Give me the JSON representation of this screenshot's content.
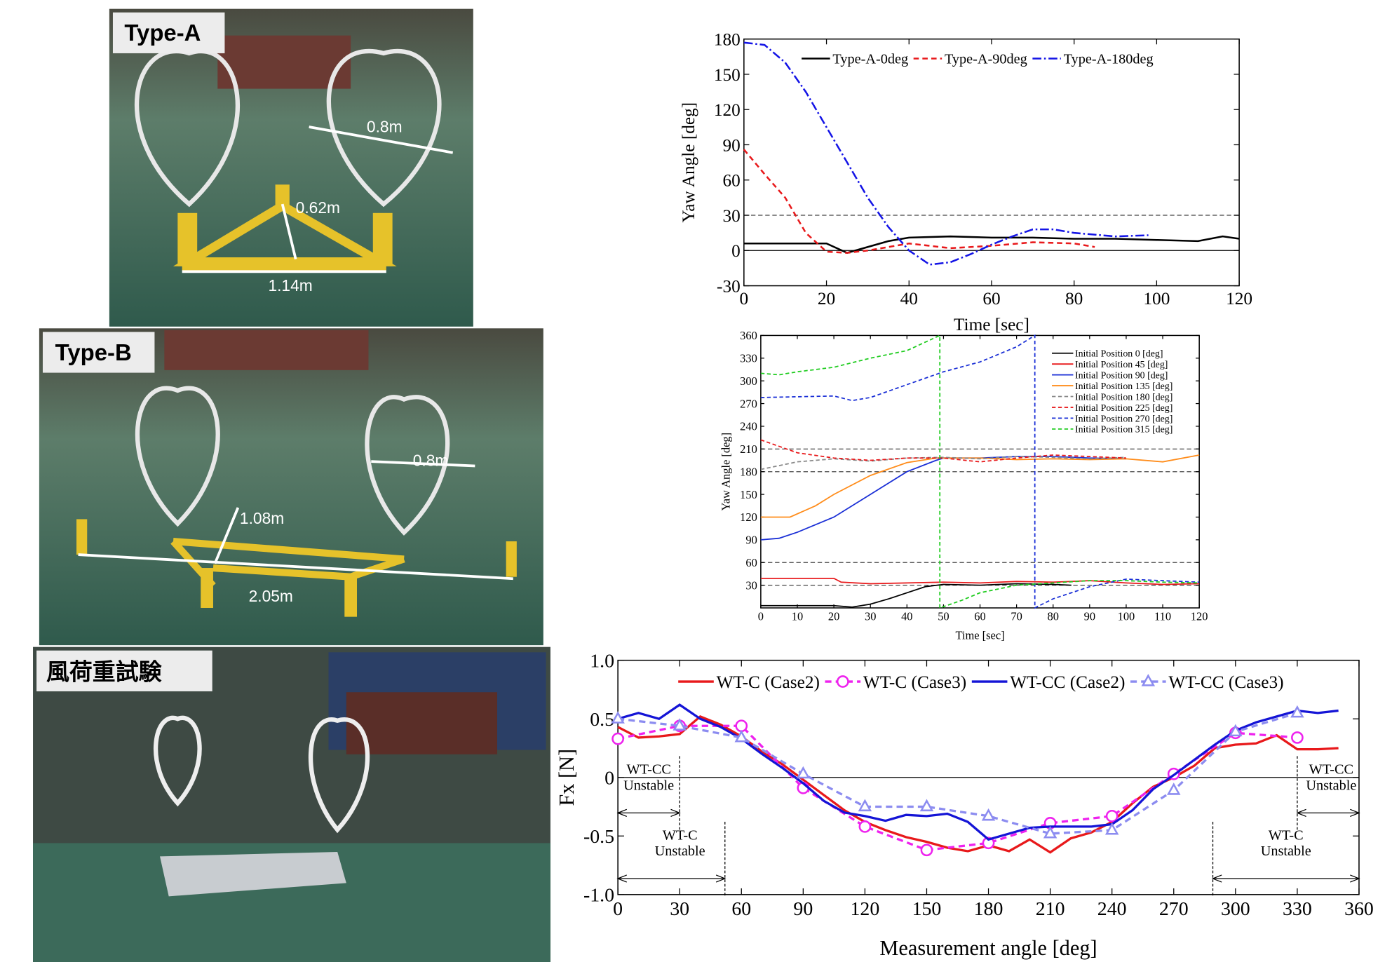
{
  "photos": [
    {
      "label": "Type-A",
      "annotations": [
        "0.8m",
        "0.62m",
        "1.14m"
      ]
    },
    {
      "label": "Type-B",
      "annotations": [
        "0.8m",
        "1.08m",
        "2.05m"
      ]
    },
    {
      "label": "風荷重試験",
      "annotations": []
    }
  ],
  "chart_data": [
    {
      "type": "line",
      "xlabel": "Time [sec]",
      "ylabel": "Yaw Angle [deg]",
      "xlim": [
        0,
        120
      ],
      "xticks": [
        0,
        20,
        40,
        60,
        80,
        100,
        120
      ],
      "ylim": [
        -30,
        180
      ],
      "yticks": [
        -30,
        0,
        30,
        60,
        90,
        120,
        150,
        180
      ],
      "hlines": [
        {
          "value": 30,
          "style": "dashed"
        },
        {
          "value": 0,
          "style": "solid"
        }
      ],
      "legend": "top",
      "series": [
        {
          "name": "Type-A-0deg",
          "color": "#000000",
          "style": "solid",
          "x": [
            0,
            10,
            20,
            25,
            30,
            35,
            40,
            50,
            60,
            70,
            80,
            90,
            100,
            110,
            116,
            120
          ],
          "values": [
            6,
            6,
            6,
            -2,
            3,
            8,
            11,
            12,
            11,
            11,
            10,
            10,
            9,
            8,
            12,
            10
          ]
        },
        {
          "name": "Type-A-90deg",
          "color": "#e8191b",
          "style": "dashed",
          "x": [
            0,
            5,
            10,
            15,
            20,
            25,
            30,
            40,
            50,
            60,
            70,
            80,
            85
          ],
          "values": [
            86,
            65,
            45,
            15,
            -1,
            -2,
            0,
            6,
            2,
            4,
            7,
            6,
            3
          ]
        },
        {
          "name": "Type-A-180deg",
          "color": "#1414e6",
          "style": "dashdot",
          "x": [
            0,
            5,
            10,
            15,
            20,
            25,
            30,
            35,
            40,
            45,
            50,
            55,
            60,
            65,
            70,
            75,
            80,
            90,
            98
          ],
          "values": [
            177,
            175,
            160,
            135,
            105,
            75,
            45,
            20,
            0,
            -12,
            -10,
            -3,
            5,
            12,
            18,
            18,
            15,
            12,
            13
          ]
        }
      ]
    },
    {
      "type": "line",
      "xlabel": "Time [sec]",
      "ylabel": "Yaw Angle [deg]",
      "xlim": [
        0,
        120
      ],
      "xticks": [
        0,
        10,
        20,
        30,
        40,
        50,
        60,
        70,
        80,
        90,
        100,
        110,
        120
      ],
      "ylim": [
        0,
        360
      ],
      "yticks": [
        30,
        60,
        90,
        120,
        150,
        180,
        210,
        240,
        270,
        300,
        330,
        360
      ],
      "hlines": [
        {
          "value": 30,
          "style": "dashed"
        },
        {
          "value": 60,
          "style": "dashed"
        },
        {
          "value": 180,
          "style": "dashed"
        },
        {
          "value": 210,
          "style": "dashed"
        }
      ],
      "legend": "top-right",
      "series": [
        {
          "name": "Initial Position 0 [deg]",
          "color": "#000000",
          "style": "solid",
          "x": [
            0,
            20,
            25,
            30,
            35,
            40,
            45,
            50,
            60,
            70,
            80,
            85
          ],
          "values": [
            3,
            3,
            1,
            5,
            12,
            20,
            28,
            31,
            30,
            32,
            31,
            30
          ]
        },
        {
          "name": "Initial Position 45 [deg]",
          "color": "#e8191b",
          "style": "solid",
          "x": [
            0,
            20,
            22,
            30,
            40,
            50,
            60,
            70,
            80,
            90,
            100,
            110,
            120
          ],
          "values": [
            39,
            39,
            34,
            32,
            33,
            34,
            33,
            35,
            34,
            36,
            33,
            31,
            32
          ]
        },
        {
          "name": "Initial Position 90 [deg]",
          "color": "#1a2fd6",
          "style": "solid",
          "x": [
            0,
            5,
            10,
            20,
            30,
            40,
            48,
            50,
            60,
            70,
            80,
            90,
            100
          ],
          "values": [
            90,
            92,
            100,
            120,
            150,
            180,
            195,
            198,
            198,
            200,
            200,
            198,
            197
          ]
        },
        {
          "name": "Initial Position 135 [deg]",
          "color": "#ff8c1a",
          "style": "solid",
          "x": [
            0,
            8,
            15,
            20,
            30,
            40,
            48,
            60,
            70,
            80,
            90,
            100,
            110,
            120
          ],
          "values": [
            120,
            120,
            135,
            150,
            175,
            192,
            198,
            198,
            196,
            197,
            196,
            197,
            193,
            202
          ]
        },
        {
          "name": "Initial Position 180 [deg]",
          "color": "#888888",
          "style": "dashed",
          "x": [
            0,
            10,
            20,
            30,
            40,
            50,
            60,
            70,
            80,
            90,
            100
          ],
          "values": [
            183,
            193,
            197,
            194,
            198,
            199,
            197,
            200,
            199,
            197,
            199
          ]
        },
        {
          "name": "Initial Position 225 [deg]",
          "color": "#e8191b",
          "style": "dashed",
          "x": [
            0,
            10,
            20,
            30,
            40,
            50,
            60,
            70,
            80,
            90,
            100
          ],
          "values": [
            222,
            205,
            198,
            195,
            198,
            198,
            193,
            198,
            202,
            200,
            198
          ]
        },
        {
          "name": "Initial Position 270 [deg]",
          "color": "#1a2fd6",
          "style": "dashed",
          "x": [
            0,
            20,
            25,
            30,
            40,
            50,
            60,
            70,
            75,
            75,
            80,
            90,
            100,
            110,
            120
          ],
          "values": [
            278,
            280,
            274,
            278,
            295,
            312,
            325,
            345,
            360,
            0,
            12,
            28,
            38,
            36,
            34
          ]
        },
        {
          "name": "Initial Position 315 [deg]",
          "color": "#1fcc1f",
          "style": "dashed",
          "x": [
            0,
            5,
            10,
            20,
            30,
            40,
            49,
            49,
            55,
            60,
            70,
            80,
            90,
            100,
            110,
            120
          ],
          "values": [
            310,
            308,
            312,
            318,
            330,
            340,
            360,
            0,
            10,
            20,
            30,
            33,
            36,
            36,
            34,
            33
          ]
        }
      ]
    },
    {
      "type": "line",
      "xlabel": "Measurement angle [deg]",
      "ylabel": "Fx [N]",
      "xlim": [
        0,
        360
      ],
      "xticks": [
        0,
        30,
        60,
        90,
        120,
        150,
        180,
        210,
        240,
        270,
        300,
        330,
        360
      ],
      "ylim": [
        -1,
        1
      ],
      "yticks": [
        {
          "value": -1,
          "label": "-1.0"
        },
        -0.5,
        0,
        0.5,
        {
          "value": 1,
          "label": "1.0"
        }
      ],
      "hlines": [
        {
          "value": 0,
          "style": "solid"
        }
      ],
      "legend": "top",
      "annotations": [
        {
          "lines": [
            "WT-CC",
            "Unstable"
          ],
          "span": [
            0,
            30
          ]
        },
        {
          "lines": [
            "WT-C",
            "Unstable"
          ],
          "span": [
            0,
            52
          ]
        },
        {
          "lines": [
            "WT-CC",
            "Unstable"
          ],
          "span": [
            330,
            360
          ]
        },
        {
          "lines": [
            "WT-C",
            "Unstable"
          ],
          "span": [
            289,
            360
          ]
        }
      ],
      "series": [
        {
          "name": "WT-C (Case2)",
          "color": "#e8191b",
          "style": "solid",
          "marker": "none",
          "x": [
            0,
            10,
            20,
            30,
            40,
            50,
            60,
            70,
            80,
            90,
            100,
            110,
            120,
            130,
            140,
            150,
            160,
            170,
            180,
            190,
            200,
            210,
            220,
            230,
            240,
            250,
            260,
            270,
            280,
            290,
            300,
            310,
            320,
            330,
            340,
            350
          ],
          "values": [
            0.43,
            0.34,
            0.35,
            0.37,
            0.52,
            0.45,
            0.35,
            0.22,
            0.11,
            -0.02,
            -0.15,
            -0.28,
            -0.38,
            -0.45,
            -0.51,
            -0.55,
            -0.6,
            -0.63,
            -0.58,
            -0.63,
            -0.53,
            -0.64,
            -0.52,
            -0.47,
            -0.38,
            -0.22,
            -0.08,
            0,
            0.1,
            0.25,
            0.28,
            0.29,
            0.36,
            0.24,
            0.24,
            0.25
          ]
        },
        {
          "name": "WT-C (Case3)",
          "color": "#ee22ee",
          "style": "dashed",
          "marker": "circle",
          "x": [
            0,
            30,
            60,
            90,
            120,
            150,
            180,
            210,
            240,
            270,
            300,
            330
          ],
          "values": [
            0.33,
            0.44,
            0.44,
            -0.09,
            -0.42,
            -0.62,
            -0.56,
            -0.39,
            -0.33,
            0.03,
            0.38,
            0.34
          ]
        },
        {
          "name": "WT-CC (Case2)",
          "color": "#1414d6",
          "style": "solid",
          "marker": "none",
          "x": [
            0,
            10,
            20,
            30,
            40,
            50,
            60,
            70,
            80,
            90,
            100,
            110,
            120,
            130,
            140,
            150,
            160,
            170,
            180,
            190,
            200,
            210,
            220,
            230,
            240,
            250,
            260,
            270,
            280,
            290,
            300,
            310,
            320,
            330,
            340,
            350
          ],
          "values": [
            0.5,
            0.55,
            0.5,
            0.62,
            0.5,
            0.43,
            0.33,
            0.2,
            0.08,
            -0.05,
            -0.2,
            -0.3,
            -0.33,
            -0.37,
            -0.32,
            -0.33,
            -0.31,
            -0.38,
            -0.53,
            -0.48,
            -0.43,
            -0.42,
            -0.42,
            -0.42,
            -0.4,
            -0.28,
            -0.1,
            0.02,
            0.15,
            0.28,
            0.4,
            0.47,
            0.52,
            0.57,
            0.55,
            0.57
          ]
        },
        {
          "name": "WT-CC (Case3)",
          "color": "#8c8cf0",
          "style": "dashed",
          "marker": "triangle",
          "x": [
            0,
            30,
            60,
            90,
            120,
            150,
            180,
            210,
            240,
            270,
            300,
            330
          ],
          "values": [
            0.5,
            0.44,
            0.34,
            0.03,
            -0.25,
            -0.25,
            -0.33,
            -0.48,
            -0.45,
            -0.11,
            0.39,
            0.55
          ]
        }
      ]
    }
  ]
}
